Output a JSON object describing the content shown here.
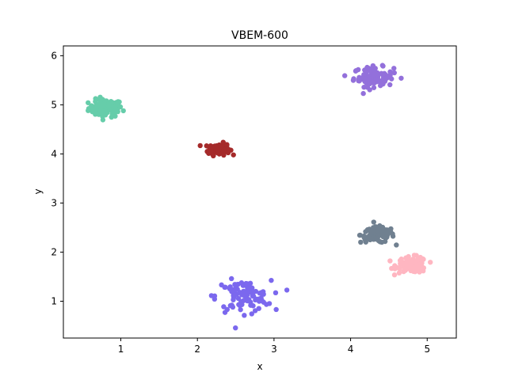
{
  "chart_data": {
    "type": "scatter",
    "title": "VBEM-600",
    "xlabel": "x",
    "ylabel": "y",
    "xlim": [
      0.25,
      5.38
    ],
    "ylim": [
      0.25,
      6.2
    ],
    "xticks": [
      1,
      2,
      3,
      4,
      5
    ],
    "yticks": [
      1,
      2,
      3,
      4,
      5,
      6
    ],
    "grid": false,
    "legend": "none",
    "clusters": [
      {
        "color": "#66cdaa",
        "center": [
          0.8,
          4.93
        ],
        "spread": [
          0.11,
          0.09
        ],
        "count": 100
      },
      {
        "color": "#a52a2a",
        "center": [
          2.28,
          4.1
        ],
        "spread": [
          0.07,
          0.06
        ],
        "count": 100
      },
      {
        "color": "#9370db",
        "center": [
          4.3,
          5.57
        ],
        "spread": [
          0.13,
          0.1
        ],
        "count": 100
      },
      {
        "color": "#708090",
        "center": [
          4.35,
          2.35
        ],
        "spread": [
          0.11,
          0.08
        ],
        "count": 100
      },
      {
        "color": "#ffb6c1",
        "center": [
          4.8,
          1.74
        ],
        "spread": [
          0.1,
          0.08
        ],
        "count": 100
      },
      {
        "color": "#7b68ee",
        "center": [
          2.6,
          1.1
        ],
        "spread": [
          0.18,
          0.16
        ],
        "count": 100
      }
    ]
  }
}
